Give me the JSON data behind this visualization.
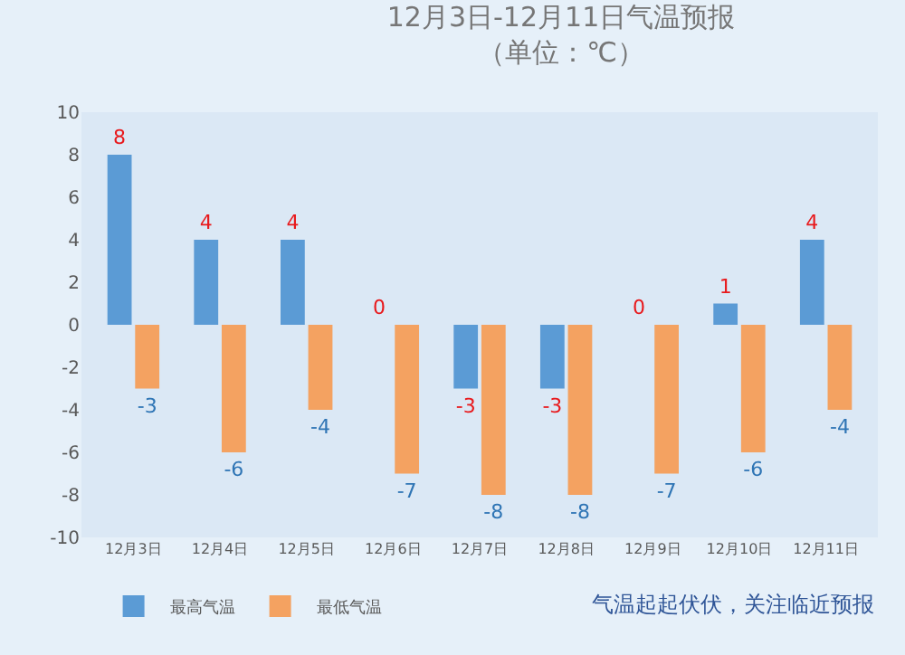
{
  "chart_data": {
    "type": "bar",
    "title": "12月3日-12月11日气温预报",
    "subtitle": "（单位：℃）",
    "categories": [
      "12月3日",
      "12月4日",
      "12月5日",
      "12月6日",
      "12月7日",
      "12月8日",
      "12月9日",
      "12月10日",
      "12月11日"
    ],
    "series": [
      {
        "name": "最高气温",
        "color": "#5b9bd5",
        "values": [
          8,
          4,
          4,
          0,
          -3,
          -3,
          0,
          1,
          4
        ]
      },
      {
        "name": "最低气温",
        "color": "#f4a261",
        "values": [
          -3,
          -6,
          -4,
          -7,
          -8,
          -8,
          -7,
          -6,
          -4
        ]
      }
    ],
    "ylim": [
      -10,
      10
    ],
    "yticks": [
      -10,
      -8,
      -6,
      -4,
      -2,
      0,
      2,
      4,
      6,
      8,
      10
    ],
    "data_labels": true,
    "grid": false,
    "legend": "bottom left",
    "annotations": [
      "气温起起伏伏，关注临近预报"
    ]
  }
}
